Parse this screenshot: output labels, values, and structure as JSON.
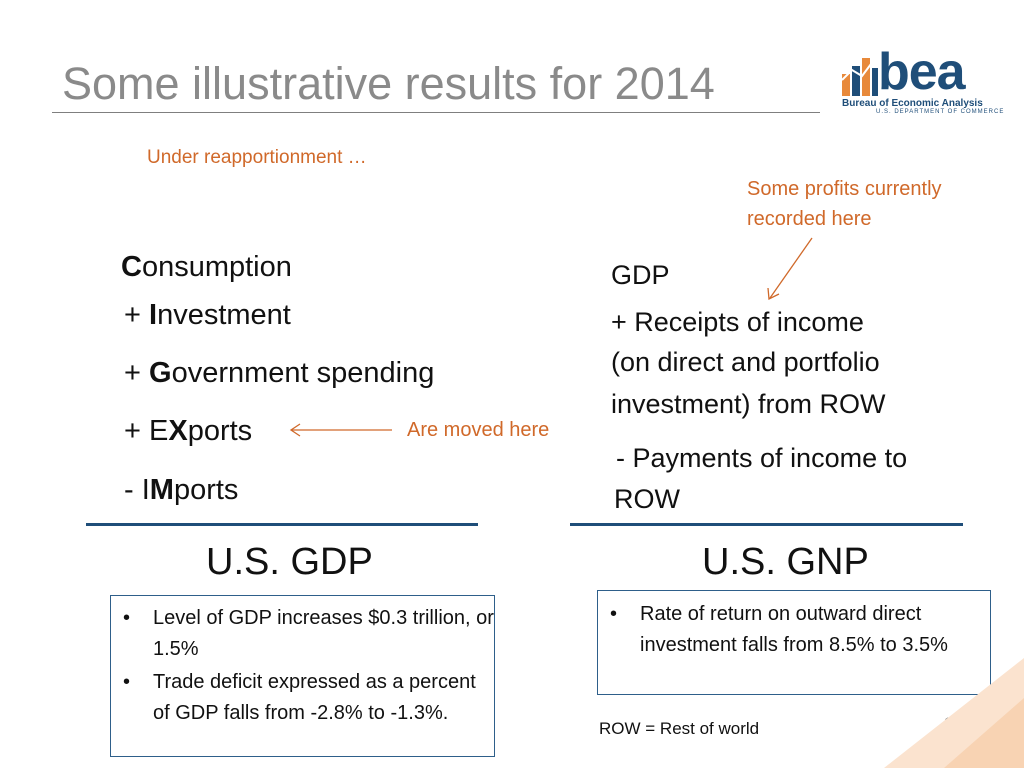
{
  "title": "Some illustrative results for 2014",
  "logo": {
    "word": "bea",
    "subtitle": "Bureau of Economic Analysis",
    "department": "U.S. DEPARTMENT OF COMMERCE"
  },
  "notes": {
    "reapportionment": "Under reapportionment …",
    "profits_line1": "Some profits currently",
    "profits_line2": "recorded here",
    "moved": "Are moved here"
  },
  "gdp_side": {
    "consumption": {
      "bold": "C",
      "rest": "onsumption"
    },
    "investment": {
      "prefix": "+ ",
      "bold": "I",
      "rest": "nvestment"
    },
    "government": {
      "prefix": "+ ",
      "bold": "G",
      "rest": "overnment spending"
    },
    "exports": {
      "prefix": "+ E",
      "bold": "X",
      "rest": "ports"
    },
    "imports": {
      "prefix": "- I",
      "bold": "M",
      "rest": "ports"
    },
    "label": "U.S. GDP",
    "bullets": [
      "Level of GDP increases $0.3 trillion, or 1.5%",
      "Trade deficit expressed as a percent of GDP falls from -2.8% to -1.3%."
    ]
  },
  "gnp_side": {
    "gdp": "GDP",
    "receipts_line1": "+ Receipts of income",
    "receipts_line2": "(on direct and portfolio",
    "receipts_line3": "investment) from ROW",
    "payments_line1": "- Payments of income to",
    "payments_line2": "ROW",
    "label": "U.S. GNP",
    "bullets": [
      "Rate of return on outward direct investment falls from 8.5% to 3.5%"
    ]
  },
  "footnote": "ROW = Rest of world",
  "page_number": "11",
  "bullet_glyph": "•",
  "colors": {
    "accent": "#d0692a",
    "navy": "#1f4e79",
    "title_gray": "#8a8a8a"
  }
}
